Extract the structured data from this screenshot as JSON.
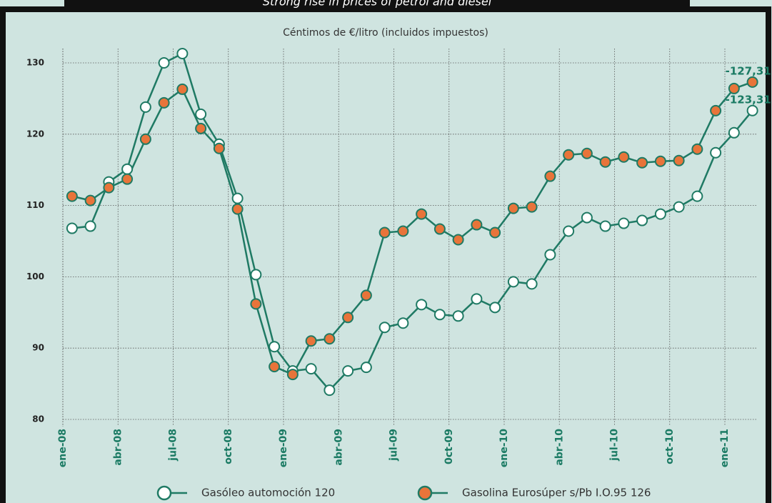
{
  "chart_data": {
    "type": "line",
    "title": "Strong rise in prices of petrol and diesel",
    "y_label": "Céntimos de €/litro (incluidos impuestos)",
    "categories": [
      "ene-08",
      null,
      null,
      "abr-08",
      null,
      null,
      "jul-08",
      null,
      null,
      "oct-08",
      null,
      null,
      "ene-09",
      null,
      null,
      "abr-09",
      null,
      null,
      "jul-09",
      null,
      null,
      "0ct-09",
      null,
      null,
      "ene-10",
      null,
      null,
      "abr-10",
      null,
      null,
      "jul-10",
      null,
      null,
      "oct-10",
      null,
      null,
      "ene-11",
      null
    ],
    "series": [
      {
        "name": "Gasóleo automoción 120",
        "color": "#ffffff",
        "values": [
          106.8,
          107.1,
          113.3,
          115.1,
          123.8,
          130,
          131.3,
          122.8,
          118.6,
          111,
          100.3,
          90.2,
          86.8,
          87.1,
          84.1,
          86.8,
          87.3,
          92.9,
          93.5,
          96.1,
          94.7,
          94.5,
          96.9,
          95.7,
          99.3,
          99,
          103.1,
          106.4,
          108.3,
          107.1,
          107.5,
          107.9,
          108.8,
          109.8,
          111.3,
          117.4,
          120.2,
          123.31
        ]
      },
      {
        "name": "Gasolina Eurosúper s/Pb I.O.95 126",
        "color": "#e8743a",
        "values": [
          111.3,
          110.7,
          112.5,
          113.7,
          119.3,
          124.4,
          126.3,
          120.8,
          118,
          109.5,
          96.2,
          87.4,
          86.3,
          91,
          91.3,
          94.3,
          97.4,
          106.2,
          106.4,
          108.8,
          106.7,
          105.2,
          107.3,
          106.2,
          109.6,
          109.8,
          114.1,
          117.1,
          117.3,
          116.1,
          116.8,
          116,
          116.2,
          116.3,
          117.9,
          123.3,
          126.4,
          127.31
        ]
      }
    ],
    "annotations": [
      "-123,31",
      "-127,31"
    ],
    "line_color": "#1f7a64",
    "ylim": [
      80,
      130
    ],
    "yticks": [
      80,
      90,
      100,
      110,
      120,
      130
    ],
    "grid": true
  }
}
